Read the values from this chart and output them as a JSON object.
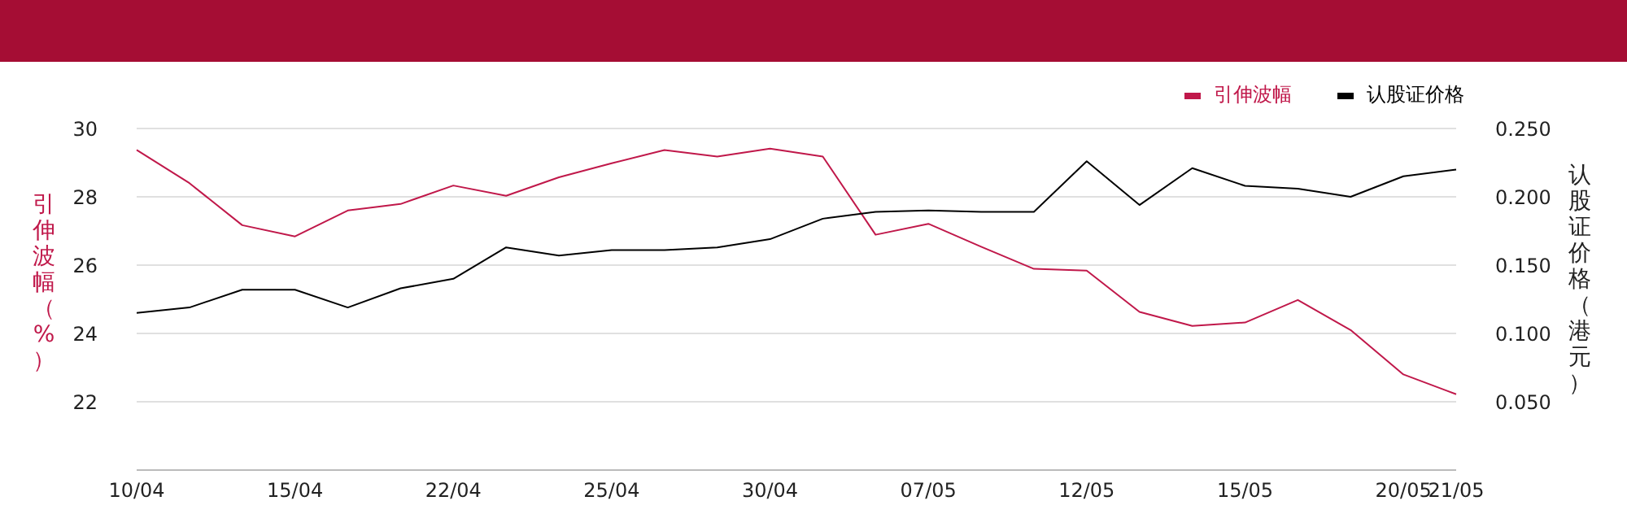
{
  "chart_data": {
    "type": "line",
    "categories": [
      "10/04",
      null,
      null,
      "15/04",
      null,
      null,
      "22/04",
      null,
      null,
      "25/04",
      null,
      null,
      "30/04",
      null,
      null,
      "07/05",
      null,
      null,
      "12/05",
      null,
      null,
      "15/05",
      null,
      null,
      "20/05",
      "21/05"
    ],
    "series": [
      {
        "name": "引伸波幅",
        "color": "#c0184a",
        "values": [
          29.37,
          28.4,
          27.17,
          26.84,
          27.6,
          27.79,
          28.33,
          28.03,
          28.57,
          28.98,
          29.37,
          29.18,
          29.41,
          29.18,
          26.89,
          27.21,
          26.54,
          25.89,
          25.84,
          24.63,
          24.22,
          24.32,
          24.98,
          24.1,
          22.8,
          22.22
        ]
      },
      {
        "name": "认股证价格",
        "color": "#000000",
        "axis": "y2",
        "values": [
          0.115,
          0.119,
          0.132,
          0.132,
          0.119,
          0.133,
          0.14,
          0.163,
          0.157,
          0.161,
          0.161,
          0.163,
          0.169,
          0.184,
          0.189,
          0.19,
          0.189,
          0.189,
          0.226,
          0.194,
          0.221,
          0.208,
          0.206,
          0.2,
          0.215,
          0.22
        ]
      }
    ],
    "ylabel": "引伸波幅（%）",
    "y2label": "认股证价格（港元）",
    "ylim": [
      20,
      30
    ],
    "yticks": [
      22,
      24,
      26,
      28,
      30
    ],
    "y2lim": [
      0,
      0.25
    ],
    "y2ticks": [
      {
        "value": 0.05,
        "label": "0.050"
      },
      {
        "value": 0.1,
        "label": "0.100"
      },
      {
        "value": 0.15,
        "label": "0.150"
      },
      {
        "value": 0.2,
        "label": "0.200"
      },
      {
        "value": 0.25,
        "label": "0.250"
      }
    ],
    "grid": "y",
    "legend": "top right",
    "marker": "none",
    "line_style": "solid"
  }
}
